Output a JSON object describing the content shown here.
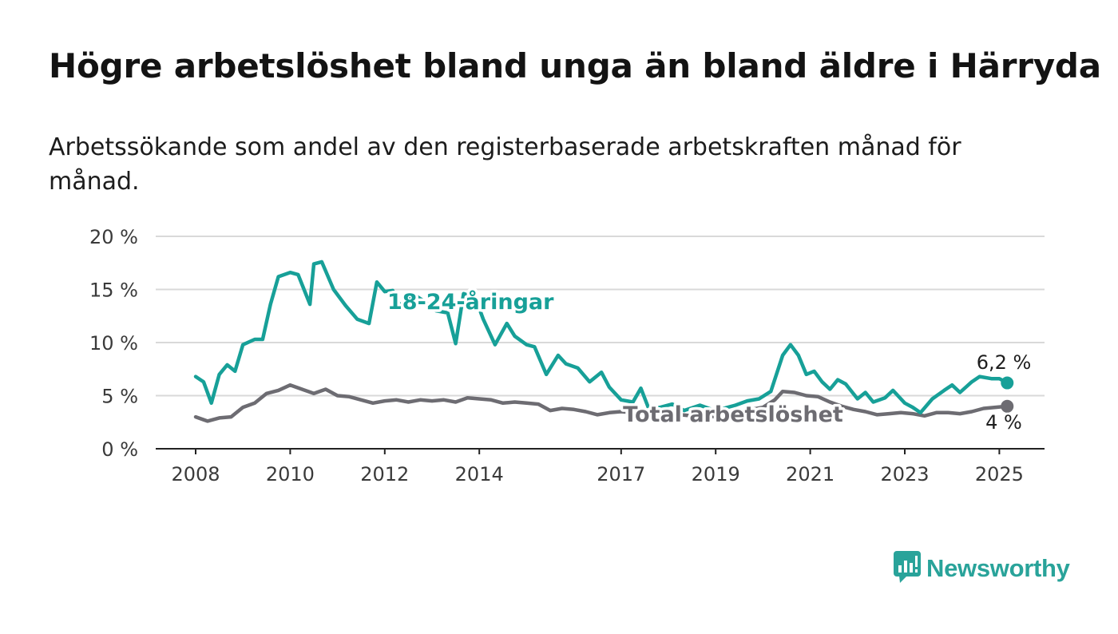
{
  "title": "Högre arbetslöshet bland unga än bland äldre i Härryda",
  "subtitle": "Arbetssökande som andel av den registerbaserade arbetskraften månad för månad.",
  "brand": {
    "name": "Newsworthy",
    "icon": "bar-chart-speech-bubble-icon",
    "color": "#29a39a"
  },
  "chart_data": {
    "type": "line",
    "title": "Högre arbetslöshet bland unga än bland äldre i Härryda",
    "subtitle": "Arbetssökande som andel av den registerbaserade arbetskraften månad för månad.",
    "xlabel": "",
    "ylabel": "",
    "x_range": [
      "2008-01",
      "2025-03"
    ],
    "x_ticks": [
      "2008",
      "2010",
      "2012",
      "2014",
      "2017",
      "2019",
      "2021",
      "2023",
      "2025"
    ],
    "ylim": [
      0,
      20
    ],
    "y_ticks": [
      0,
      5,
      10,
      15,
      20
    ],
    "y_tick_labels": [
      "0 %",
      "5 %",
      "10 %",
      "15 %",
      "20 %"
    ],
    "grid": true,
    "legend": "none (direct labels on series)",
    "series": [
      {
        "name": "18-24-åringar",
        "color": "#17a098",
        "end_label": "6,2 %",
        "points": [
          [
            "2008-01",
            6.8
          ],
          [
            "2008-03",
            6.3
          ],
          [
            "2008-05",
            4.3
          ],
          [
            "2008-07",
            7.0
          ],
          [
            "2008-09",
            7.9
          ],
          [
            "2008-11",
            7.3
          ],
          [
            "2009-01",
            9.8
          ],
          [
            "2009-04",
            10.3
          ],
          [
            "2009-06",
            10.3
          ],
          [
            "2009-08",
            13.6
          ],
          [
            "2009-10",
            16.2
          ],
          [
            "2010-01",
            16.6
          ],
          [
            "2010-03",
            16.4
          ],
          [
            "2010-06",
            13.6
          ],
          [
            "2010-07",
            17.4
          ],
          [
            "2010-09",
            17.6
          ],
          [
            "2010-12",
            15.0
          ],
          [
            "2011-03",
            13.5
          ],
          [
            "2011-06",
            12.2
          ],
          [
            "2011-09",
            11.8
          ],
          [
            "2011-11",
            15.7
          ],
          [
            "2012-01",
            14.8
          ],
          [
            "2012-03",
            14.9
          ],
          [
            "2012-05",
            13.4
          ],
          [
            "2012-08",
            14.6
          ],
          [
            "2012-11",
            13.9
          ],
          [
            "2013-02",
            13.0
          ],
          [
            "2013-05",
            12.8
          ],
          [
            "2013-07",
            9.9
          ],
          [
            "2013-09",
            14.6
          ],
          [
            "2013-12",
            14.2
          ],
          [
            "2014-02",
            12.2
          ],
          [
            "2014-05",
            9.8
          ],
          [
            "2014-08",
            11.8
          ],
          [
            "2014-10",
            10.6
          ],
          [
            "2015-01",
            9.8
          ],
          [
            "2015-03",
            9.6
          ],
          [
            "2015-06",
            7.0
          ],
          [
            "2015-09",
            8.8
          ],
          [
            "2015-11",
            8.0
          ],
          [
            "2016-02",
            7.6
          ],
          [
            "2016-05",
            6.3
          ],
          [
            "2016-08",
            7.2
          ],
          [
            "2016-10",
            5.8
          ],
          [
            "2017-01",
            4.6
          ],
          [
            "2017-04",
            4.4
          ],
          [
            "2017-06",
            5.7
          ],
          [
            "2017-08",
            3.8
          ],
          [
            "2017-11",
            3.9
          ],
          [
            "2018-02",
            4.2
          ],
          [
            "2018-05",
            3.6
          ],
          [
            "2018-09",
            4.1
          ],
          [
            "2018-12",
            3.7
          ],
          [
            "2019-03",
            3.8
          ],
          [
            "2019-06",
            4.1
          ],
          [
            "2019-09",
            4.5
          ],
          [
            "2019-12",
            4.7
          ],
          [
            "2020-03",
            5.4
          ],
          [
            "2020-06",
            8.8
          ],
          [
            "2020-08",
            9.8
          ],
          [
            "2020-10",
            8.8
          ],
          [
            "2020-12",
            7.0
          ],
          [
            "2021-02",
            7.3
          ],
          [
            "2021-04",
            6.3
          ],
          [
            "2021-06",
            5.6
          ],
          [
            "2021-08",
            6.5
          ],
          [
            "2021-10",
            6.1
          ],
          [
            "2022-01",
            4.7
          ],
          [
            "2022-03",
            5.3
          ],
          [
            "2022-05",
            4.4
          ],
          [
            "2022-08",
            4.8
          ],
          [
            "2022-10",
            5.5
          ],
          [
            "2023-01",
            4.3
          ],
          [
            "2023-03",
            3.9
          ],
          [
            "2023-05",
            3.4
          ],
          [
            "2023-08",
            4.7
          ],
          [
            "2023-11",
            5.5
          ],
          [
            "2024-01",
            6.0
          ],
          [
            "2024-03",
            5.3
          ],
          [
            "2024-06",
            6.3
          ],
          [
            "2024-08",
            6.8
          ],
          [
            "2024-11",
            6.6
          ],
          [
            "2025-01",
            6.6
          ],
          [
            "2025-03",
            6.2
          ]
        ]
      },
      {
        "name": "Total arbetslöshet",
        "color": "#6d6c72",
        "end_label": "4 %",
        "points": [
          [
            "2008-01",
            3.0
          ],
          [
            "2008-04",
            2.6
          ],
          [
            "2008-07",
            2.9
          ],
          [
            "2008-10",
            3.0
          ],
          [
            "2009-01",
            3.9
          ],
          [
            "2009-04",
            4.3
          ],
          [
            "2009-07",
            5.2
          ],
          [
            "2009-10",
            5.5
          ],
          [
            "2010-01",
            6.0
          ],
          [
            "2010-04",
            5.6
          ],
          [
            "2010-07",
            5.2
          ],
          [
            "2010-10",
            5.6
          ],
          [
            "2011-01",
            5.0
          ],
          [
            "2011-04",
            4.9
          ],
          [
            "2011-07",
            4.6
          ],
          [
            "2011-10",
            4.3
          ],
          [
            "2012-01",
            4.5
          ],
          [
            "2012-04",
            4.6
          ],
          [
            "2012-07",
            4.4
          ],
          [
            "2012-10",
            4.6
          ],
          [
            "2013-01",
            4.5
          ],
          [
            "2013-04",
            4.6
          ],
          [
            "2013-07",
            4.4
          ],
          [
            "2013-10",
            4.8
          ],
          [
            "2014-01",
            4.7
          ],
          [
            "2014-04",
            4.6
          ],
          [
            "2014-07",
            4.3
          ],
          [
            "2014-10",
            4.4
          ],
          [
            "2015-01",
            4.3
          ],
          [
            "2015-04",
            4.2
          ],
          [
            "2015-07",
            3.6
          ],
          [
            "2015-10",
            3.8
          ],
          [
            "2016-01",
            3.7
          ],
          [
            "2016-04",
            3.5
          ],
          [
            "2016-07",
            3.2
          ],
          [
            "2016-10",
            3.4
          ],
          [
            "2017-01",
            3.5
          ],
          [
            "2017-04",
            3.4
          ],
          [
            "2017-07",
            3.4
          ],
          [
            "2017-10",
            3.3
          ],
          [
            "2018-01",
            3.3
          ],
          [
            "2018-04",
            3.2
          ],
          [
            "2018-07",
            3.1
          ],
          [
            "2018-10",
            3.2
          ],
          [
            "2019-01",
            3.0
          ],
          [
            "2019-04",
            3.1
          ],
          [
            "2019-07",
            3.4
          ],
          [
            "2019-10",
            3.7
          ],
          [
            "2020-01",
            3.9
          ],
          [
            "2020-04",
            4.6
          ],
          [
            "2020-06",
            5.4
          ],
          [
            "2020-09",
            5.3
          ],
          [
            "2020-12",
            5.0
          ],
          [
            "2021-03",
            4.9
          ],
          [
            "2021-06",
            4.4
          ],
          [
            "2021-09",
            4.0
          ],
          [
            "2021-12",
            3.7
          ],
          [
            "2022-03",
            3.5
          ],
          [
            "2022-06",
            3.2
          ],
          [
            "2022-09",
            3.3
          ],
          [
            "2022-12",
            3.4
          ],
          [
            "2023-03",
            3.3
          ],
          [
            "2023-06",
            3.1
          ],
          [
            "2023-09",
            3.4
          ],
          [
            "2023-12",
            3.4
          ],
          [
            "2024-03",
            3.3
          ],
          [
            "2024-06",
            3.5
          ],
          [
            "2024-09",
            3.8
          ],
          [
            "2024-12",
            3.9
          ],
          [
            "2025-03",
            4.0
          ]
        ]
      }
    ]
  }
}
